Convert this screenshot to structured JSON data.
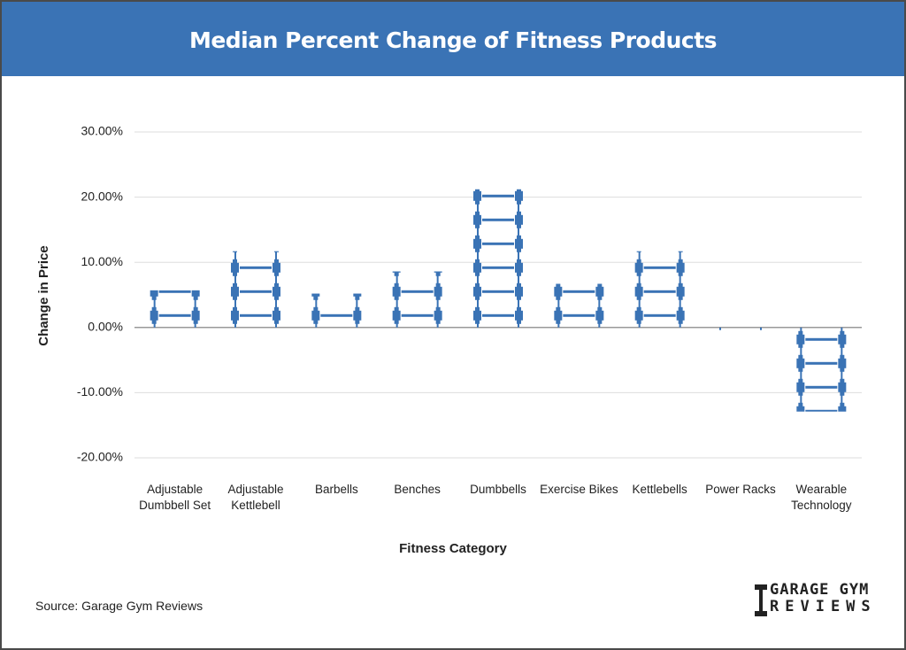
{
  "chart_data": {
    "type": "pictograph",
    "title": "Median Percent Change of Fitness Products",
    "x_label": "Fitness Category",
    "y_label": "Change in Price",
    "categories": [
      "Adjustable Dumbbell Set",
      "Adjustable Kettlebell",
      "Barbells",
      "Benches",
      "Dumbbells",
      "Exercise Bikes",
      "Kettlebells",
      "Power Racks",
      "Wearable Technology"
    ],
    "values": [
      5.7,
      11.7,
      5.2,
      8.6,
      21.2,
      6.7,
      11.7,
      -0.4,
      -12.9
    ],
    "color": "#3a73b5",
    "ylim": [
      -20,
      30
    ],
    "yticks": [
      {
        "value": -20,
        "label": "-20.00%"
      },
      {
        "value": -10,
        "label": "-10.00%"
      },
      {
        "value": 0,
        "label": "0.00%"
      },
      {
        "value": 10,
        "label": "10.00%"
      },
      {
        "value": 20,
        "label": "20.00%"
      },
      {
        "value": 30,
        "label": "30.00%"
      }
    ],
    "grid": true,
    "source": "Source: Garage Gym Reviews",
    "logo": [
      "GARAGE GYM",
      "REVIEWS"
    ]
  }
}
